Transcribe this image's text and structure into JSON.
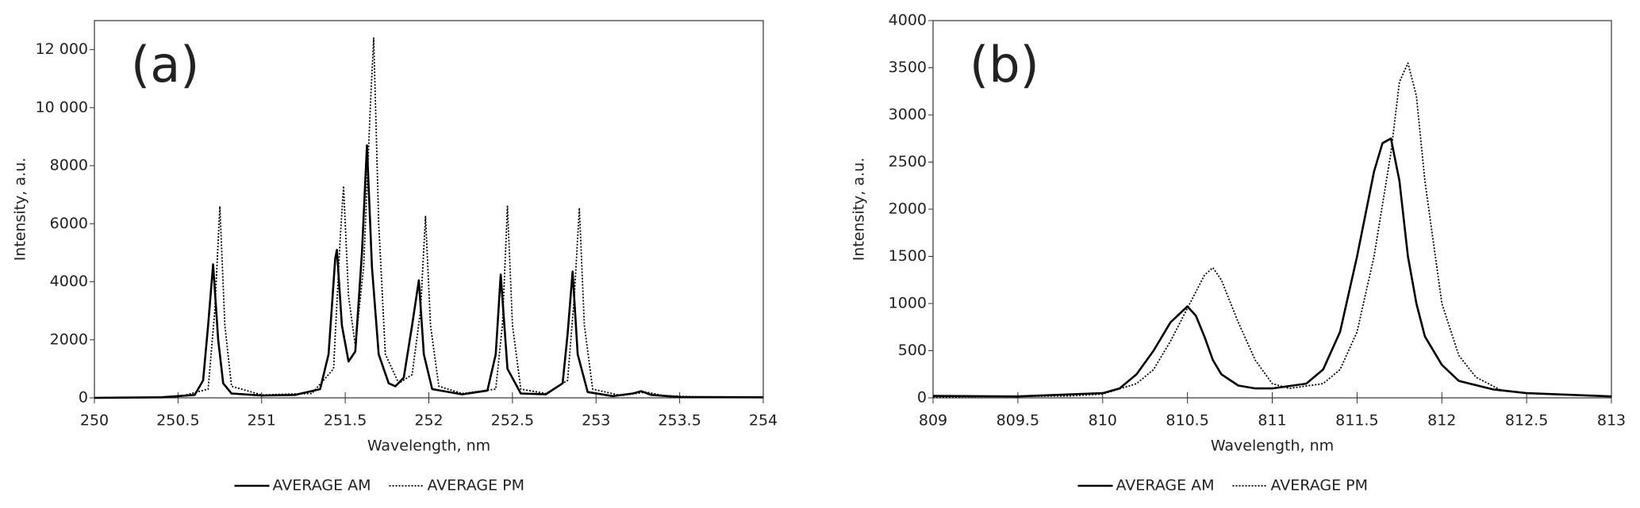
{
  "chart_data": [
    {
      "type": "line",
      "annotation": "(a)",
      "x_label": "Wavelength, nm",
      "y_label": "Intensity, a.u.",
      "xlim": [
        250,
        254
      ],
      "xticks": [
        250,
        250.5,
        251,
        251.5,
        252,
        252.5,
        253,
        253.5,
        254
      ],
      "ylim": [
        0,
        13000
      ],
      "yticks": [
        0,
        2000,
        4000,
        6000,
        8000,
        {
          "value": 10000,
          "label": "10 000"
        },
        {
          "value": 12000,
          "label": "12 000"
        }
      ],
      "grid": false,
      "series": [
        {
          "name": "AVERAGE AM",
          "color": "#000000",
          "dash": "solid",
          "x": [
            250,
            250.4,
            250.6,
            250.65,
            250.68,
            250.71,
            250.74,
            250.77,
            250.82,
            251,
            251.2,
            251.35,
            251.4,
            251.44,
            251.45,
            251.48,
            251.52,
            251.56,
            251.6,
            251.63,
            251.66,
            251.7,
            251.76,
            251.8,
            251.85,
            251.9,
            251.94,
            251.97,
            252.02,
            252.2,
            252.35,
            252.4,
            252.43,
            252.47,
            252.55,
            252.7,
            252.8,
            252.83,
            252.86,
            252.89,
            252.95,
            253.1,
            253.22,
            253.27,
            253.33,
            253.5,
            254
          ],
          "values": [
            0,
            20,
            100,
            600,
            2500,
            4600,
            2000,
            500,
            150,
            80,
            100,
            300,
            1500,
            4800,
            5100,
            2500,
            1250,
            1600,
            5000,
            8700,
            4500,
            1500,
            500,
            400,
            700,
            2500,
            4050,
            1500,
            300,
            120,
            250,
            1500,
            4250,
            1000,
            150,
            120,
            500,
            2200,
            4350,
            1500,
            200,
            60,
            150,
            230,
            100,
            30,
            20
          ]
        },
        {
          "name": "AVERAGE PM",
          "color": "#000000",
          "dash": "dotted",
          "x": [
            250,
            250.5,
            250.68,
            250.72,
            250.75,
            250.78,
            250.82,
            251,
            251.3,
            251.43,
            251.47,
            251.49,
            251.52,
            251.56,
            251.61,
            251.65,
            251.67,
            251.7,
            251.74,
            251.82,
            251.9,
            251.95,
            251.98,
            252.01,
            252.06,
            252.2,
            252.4,
            252.44,
            252.47,
            252.5,
            252.55,
            252.7,
            252.83,
            252.87,
            252.9,
            252.93,
            252.98,
            253.15,
            253.3,
            253.4,
            253.6,
            254
          ],
          "values": [
            0,
            30,
            300,
            3000,
            6600,
            2500,
            400,
            100,
            150,
            1000,
            5500,
            7300,
            3500,
            1800,
            4500,
            10000,
            12400,
            6000,
            1500,
            500,
            800,
            3000,
            6250,
            2500,
            400,
            150,
            300,
            2500,
            6600,
            2500,
            300,
            150,
            600,
            3500,
            6550,
            2500,
            300,
            80,
            200,
            80,
            30,
            20
          ]
        }
      ]
    },
    {
      "type": "line",
      "annotation": "(b)",
      "x_label": "Wavelength, nm",
      "y_label": "Intensity, a.u.",
      "xlim": [
        809,
        813
      ],
      "xticks": [
        809,
        809.5,
        810,
        810.5,
        811,
        811.5,
        812,
        812.5,
        813
      ],
      "ylim": [
        0,
        4000
      ],
      "yticks": [
        0,
        500,
        1000,
        1500,
        2000,
        2500,
        3000,
        3500,
        4000
      ],
      "grid": false,
      "series": [
        {
          "name": "AVERAGE AM",
          "color": "#000000",
          "dash": "solid",
          "x": [
            809,
            809.5,
            810,
            810.1,
            810.2,
            810.3,
            810.4,
            810.5,
            810.55,
            810.6,
            810.65,
            810.7,
            810.8,
            810.9,
            811,
            811.2,
            811.3,
            811.4,
            811.5,
            811.6,
            811.65,
            811.7,
            811.75,
            811.8,
            811.85,
            811.9,
            812,
            812.1,
            812.3,
            812.5,
            813
          ],
          "values": [
            20,
            15,
            50,
            100,
            250,
            500,
            800,
            970,
            870,
            650,
            400,
            250,
            130,
            100,
            100,
            150,
            300,
            700,
            1500,
            2400,
            2700,
            2750,
            2300,
            1500,
            1000,
            650,
            350,
            180,
            90,
            50,
            15
          ]
        },
        {
          "name": "AVERAGE PM",
          "color": "#000000",
          "dash": "dotted",
          "x": [
            809,
            809.8,
            810,
            810.2,
            810.3,
            810.4,
            810.5,
            810.6,
            810.65,
            810.7,
            810.8,
            810.9,
            811,
            811.1,
            811.3,
            811.4,
            811.5,
            811.6,
            811.7,
            811.75,
            811.8,
            811.85,
            811.9,
            812,
            812.1,
            812.2,
            812.35
          ],
          "values": [
            10,
            20,
            40,
            150,
            300,
            600,
            950,
            1300,
            1380,
            1250,
            800,
            400,
            150,
            100,
            150,
            300,
            700,
            1500,
            2600,
            3350,
            3550,
            3200,
            2300,
            1000,
            450,
            220,
            80
          ]
        }
      ]
    }
  ]
}
